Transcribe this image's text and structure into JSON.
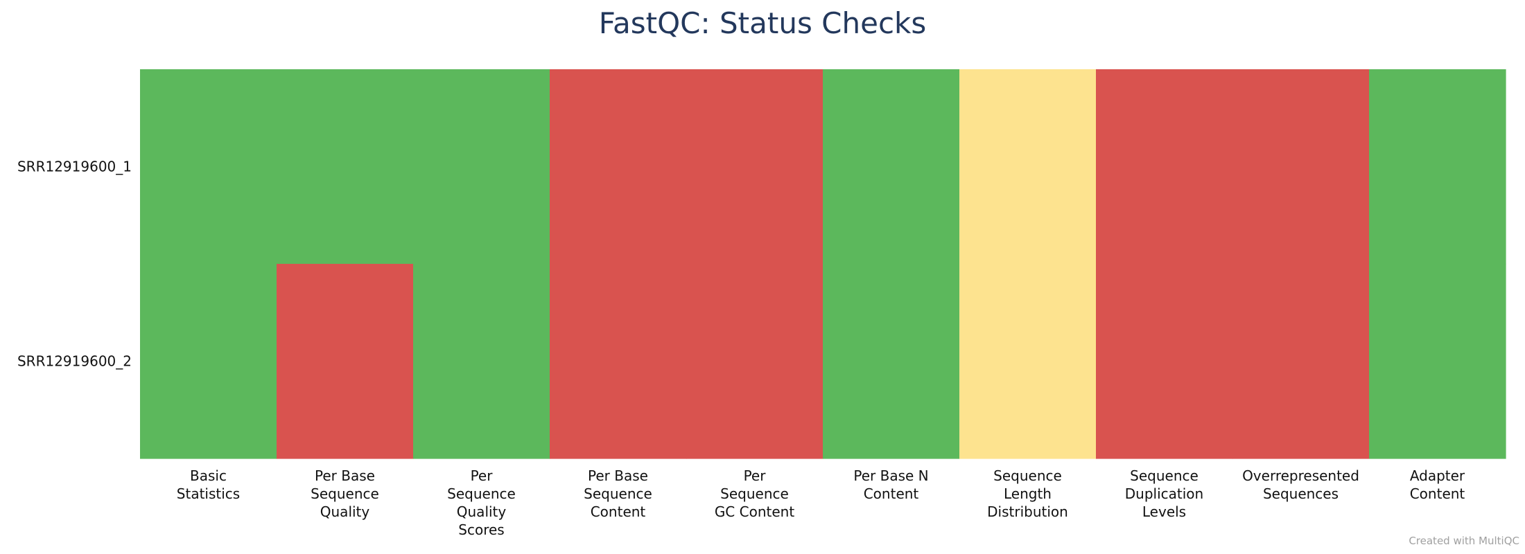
{
  "chart_data": {
    "type": "heatmap",
    "title": "FastQC: Status Checks",
    "rows": [
      "SRR12919600_1",
      "SRR12919600_2"
    ],
    "columns": [
      [
        "Basic",
        "Statistics"
      ],
      [
        "Per Base",
        "Sequence",
        "Quality"
      ],
      [
        "Per",
        "Sequence",
        "Quality",
        "Scores"
      ],
      [
        "Per Base",
        "Sequence",
        "Content"
      ],
      [
        "Per",
        "Sequence",
        "GC Content"
      ],
      [
        "Per Base N",
        "Content"
      ],
      [
        "Sequence",
        "Length",
        "Distribution"
      ],
      [
        "Sequence",
        "Duplication",
        "Levels"
      ],
      [
        "Overrepresented",
        "Sequences"
      ],
      [
        "Adapter",
        "Content"
      ]
    ],
    "values": [
      [
        "pass",
        "pass",
        "pass",
        "fail",
        "fail",
        "pass",
        "warn",
        "fail",
        "fail",
        "pass"
      ],
      [
        "pass",
        "fail",
        "pass",
        "fail",
        "fail",
        "pass",
        "warn",
        "fail",
        "fail",
        "pass"
      ]
    ],
    "status_colors": {
      "pass": "#5cb85c",
      "warn": "#fde38f",
      "fail": "#d9534f"
    }
  },
  "credit": "Created with MultiQC"
}
